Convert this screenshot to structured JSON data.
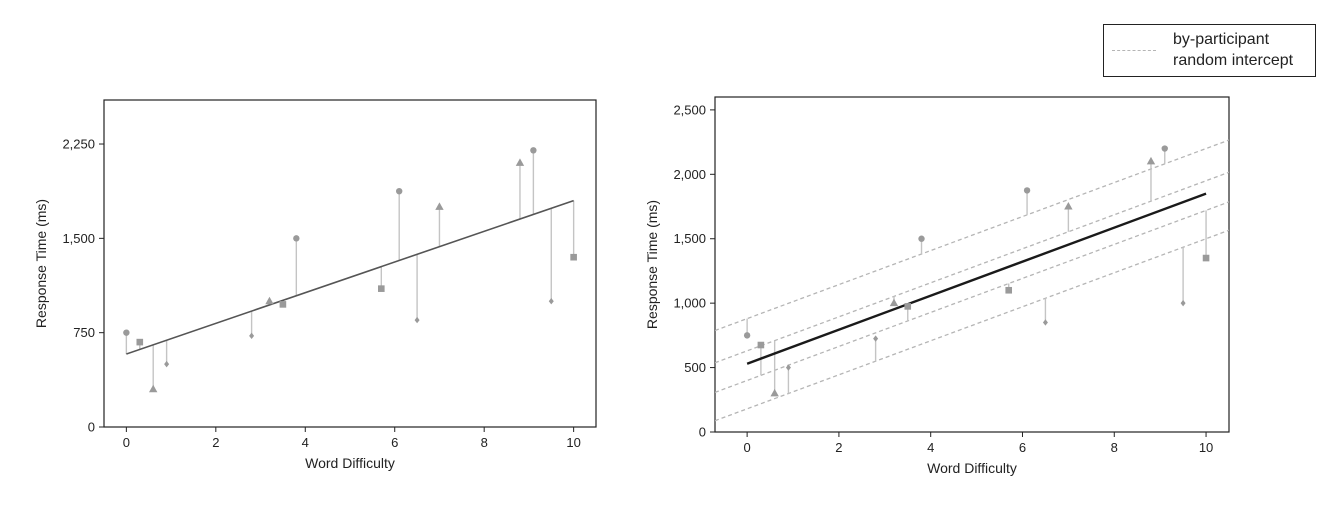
{
  "chart_data": [
    {
      "type": "scatter",
      "title": "",
      "xlabel": "Word Difficulty",
      "ylabel": "Response Time (ms)",
      "xlim": [
        -0.5,
        10.5
      ],
      "ylim": [
        0,
        2600
      ],
      "xticks": [
        0,
        2,
        4,
        6,
        8,
        10
      ],
      "xtick_labels": [
        "0",
        "2",
        "4",
        "6",
        "8",
        "10"
      ],
      "yticks": [
        0,
        750,
        1500,
        2250
      ],
      "ytick_labels": [
        "0",
        "750",
        "1,500",
        "2,250"
      ],
      "grid": false,
      "fit_line": {
        "intercept": 580,
        "slope": 122
      },
      "points": [
        {
          "x": 0.0,
          "y": 750,
          "shape": "circle"
        },
        {
          "x": 0.3,
          "y": 675,
          "shape": "square"
        },
        {
          "x": 0.6,
          "y": 300,
          "shape": "triangle"
        },
        {
          "x": 0.9,
          "y": 500,
          "shape": "diamond"
        },
        {
          "x": 2.8,
          "y": 725,
          "shape": "diamond"
        },
        {
          "x": 3.2,
          "y": 1000,
          "shape": "triangle"
        },
        {
          "x": 3.5,
          "y": 975,
          "shape": "square"
        },
        {
          "x": 3.8,
          "y": 1500,
          "shape": "circle"
        },
        {
          "x": 5.7,
          "y": 1100,
          "shape": "square"
        },
        {
          "x": 6.1,
          "y": 1875,
          "shape": "circle"
        },
        {
          "x": 6.5,
          "y": 850,
          "shape": "diamond"
        },
        {
          "x": 7.0,
          "y": 1750,
          "shape": "triangle"
        },
        {
          "x": 8.8,
          "y": 2100,
          "shape": "triangle"
        },
        {
          "x": 9.1,
          "y": 2200,
          "shape": "circle"
        },
        {
          "x": 9.5,
          "y": 1000,
          "shape": "diamond"
        },
        {
          "x": 10.0,
          "y": 1350,
          "shape": "square"
        }
      ]
    },
    {
      "type": "scatter",
      "title": "",
      "xlabel": "Word Difficulty",
      "ylabel": "Response Time (ms)",
      "xlim": [
        -0.7,
        10.5
      ],
      "ylim": [
        0,
        2600
      ],
      "xticks": [
        0,
        2,
        4,
        6,
        8,
        10
      ],
      "xtick_labels": [
        "0",
        "2",
        "4",
        "6",
        "8",
        "10"
      ],
      "yticks": [
        0,
        500,
        1000,
        1500,
        2000,
        2500
      ],
      "ytick_labels": [
        "0",
        "500",
        "1,000",
        "1,500",
        "2,000",
        "2,500"
      ],
      "grid": false,
      "legend": {
        "position": "top-right",
        "entries": [
          "by-participant random intercept"
        ]
      },
      "fit_line": {
        "intercept": 530,
        "slope": 132
      },
      "random_intercepts": [
        {
          "shape": "circle",
          "intercept": 880
        },
        {
          "shape": "triangle",
          "intercept": 630
        },
        {
          "shape": "square",
          "intercept": 400
        },
        {
          "shape": "diamond",
          "intercept": 180
        }
      ],
      "random_slope": 132,
      "points": [
        {
          "x": 0.0,
          "y": 750,
          "shape": "circle"
        },
        {
          "x": 0.3,
          "y": 675,
          "shape": "square"
        },
        {
          "x": 0.6,
          "y": 300,
          "shape": "triangle"
        },
        {
          "x": 0.9,
          "y": 500,
          "shape": "diamond"
        },
        {
          "x": 2.8,
          "y": 725,
          "shape": "diamond"
        },
        {
          "x": 3.2,
          "y": 1000,
          "shape": "triangle"
        },
        {
          "x": 3.5,
          "y": 975,
          "shape": "square"
        },
        {
          "x": 3.8,
          "y": 1500,
          "shape": "circle"
        },
        {
          "x": 5.7,
          "y": 1100,
          "shape": "square"
        },
        {
          "x": 6.1,
          "y": 1875,
          "shape": "circle"
        },
        {
          "x": 6.5,
          "y": 850,
          "shape": "diamond"
        },
        {
          "x": 7.0,
          "y": 1750,
          "shape": "triangle"
        },
        {
          "x": 8.8,
          "y": 2100,
          "shape": "triangle"
        },
        {
          "x": 9.1,
          "y": 2200,
          "shape": "circle"
        },
        {
          "x": 9.5,
          "y": 1000,
          "shape": "diamond"
        },
        {
          "x": 10.0,
          "y": 1350,
          "shape": "square"
        }
      ]
    }
  ],
  "legend": {
    "label": "by-participant random intercept"
  },
  "colors": {
    "points": "#9a9a9a",
    "residuals": "#c4c4c4",
    "fit_left": "#555555",
    "fit_right": "#1a1a1a",
    "random_lines": "#b5b5b5",
    "axes": "#222222"
  }
}
